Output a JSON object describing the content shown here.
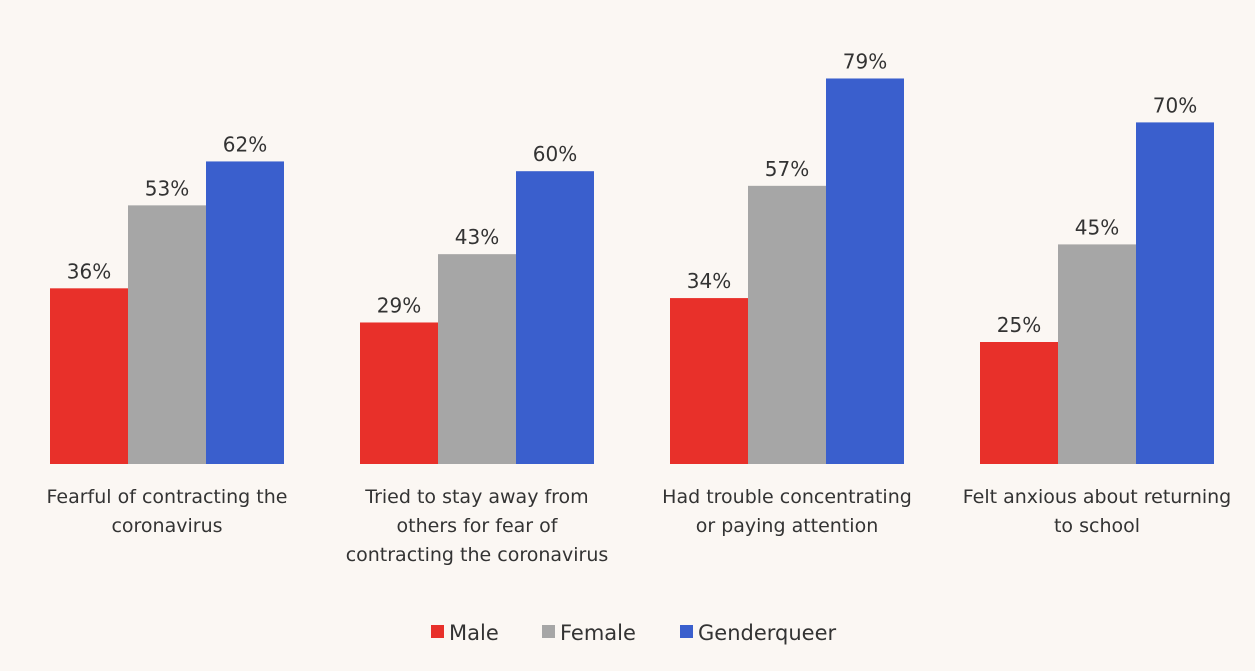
{
  "chart_data": {
    "type": "bar",
    "title": "",
    "xlabel": "",
    "ylabel": "",
    "ylim": [
      0,
      80
    ],
    "grid": false,
    "legend_position": "bottom",
    "value_suffix": "%",
    "categories": [
      [
        "Fearful of contracting the",
        "coronavirus"
      ],
      [
        "Tried to stay away from",
        "others for fear of",
        "contracting the coronavirus"
      ],
      [
        "Had trouble concentrating",
        "or paying attention"
      ],
      [
        "Felt anxious about returning",
        "to school"
      ]
    ],
    "series": [
      {
        "name": "Male",
        "color": "#e8302a",
        "values": [
          36,
          29,
          34,
          25
        ]
      },
      {
        "name": "Female",
        "color": "#a6a6a6",
        "values": [
          53,
          43,
          57,
          45
        ]
      },
      {
        "name": "Genderqueer",
        "color": "#3a5fcd",
        "values": [
          62,
          60,
          79,
          70
        ]
      }
    ]
  }
}
